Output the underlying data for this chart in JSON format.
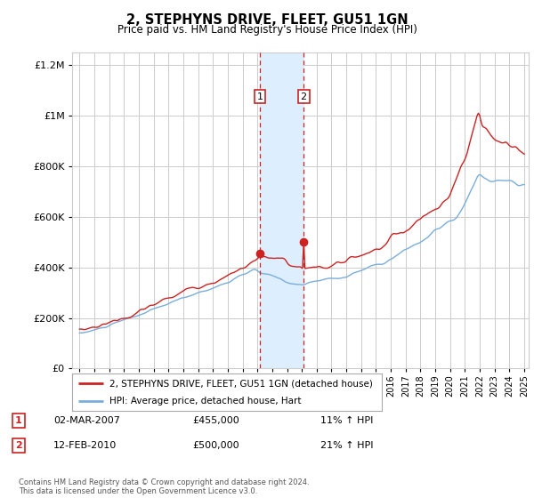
{
  "title": "2, STEPHYNS DRIVE, FLEET, GU51 1GN",
  "subtitle": "Price paid vs. HM Land Registry's House Price Index (HPI)",
  "footer": "Contains HM Land Registry data © Crown copyright and database right 2024.\nThis data is licensed under the Open Government Licence v3.0.",
  "legend_line1": "2, STEPHYNS DRIVE, FLEET, GU51 1GN (detached house)",
  "legend_line2": "HPI: Average price, detached house, Hart",
  "transaction1_date": "02-MAR-2007",
  "transaction1_price": "£455,000",
  "transaction1_hpi": "11% ↑ HPI",
  "transaction2_date": "12-FEB-2010",
  "transaction2_price": "£500,000",
  "transaction2_hpi": "21% ↑ HPI",
  "sale1_year": 2007.17,
  "sale1_price": 455000,
  "sale2_year": 2010.12,
  "sale2_price": 500000,
  "hpi_color": "#7aaddb",
  "price_color": "#cc2222",
  "shade_color": "#ddeeff",
  "grid_color": "#cccccc",
  "background_color": "#ffffff",
  "ylim": [
    0,
    1250000
  ],
  "yticks": [
    0,
    200000,
    400000,
    600000,
    800000,
    1000000,
    1200000
  ],
  "xlim_start": 1994.5,
  "xlim_end": 2025.3
}
